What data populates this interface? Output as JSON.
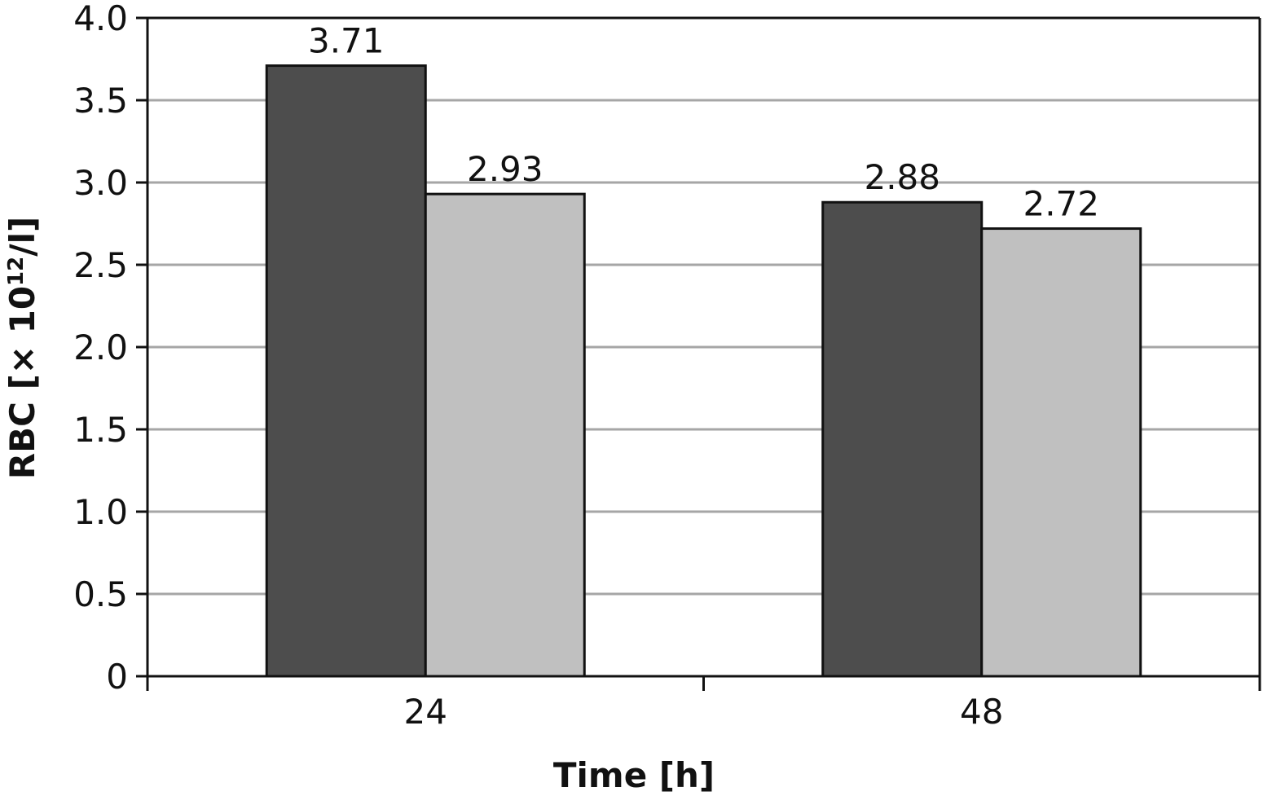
{
  "chart_data": {
    "type": "bar",
    "categories": [
      "24",
      "48"
    ],
    "series": [
      {
        "color": "#4d4d4d",
        "values": [
          3.71,
          2.88
        ],
        "labels": [
          "3.71",
          "2.88"
        ]
      },
      {
        "color": "#c0c0c0",
        "values": [
          2.93,
          2.72
        ],
        "labels": [
          "2.93",
          "2.72"
        ]
      }
    ],
    "xlabel": "Time [h]",
    "ylabel": {
      "main": "RBC [× 10",
      "sup": "12",
      "tail": "/l]"
    },
    "ylim": [
      0,
      4.0
    ],
    "yticks": [
      "0",
      "0.5",
      "1.0",
      "1.5",
      "2.0",
      "2.5",
      "3.0",
      "3.5",
      "4.0"
    ],
    "ytick_values": [
      0,
      0.5,
      1.0,
      1.5,
      2.0,
      2.5,
      3.0,
      3.5,
      4.0
    ],
    "grid": true,
    "gridline_color": "#a6a6a6"
  }
}
